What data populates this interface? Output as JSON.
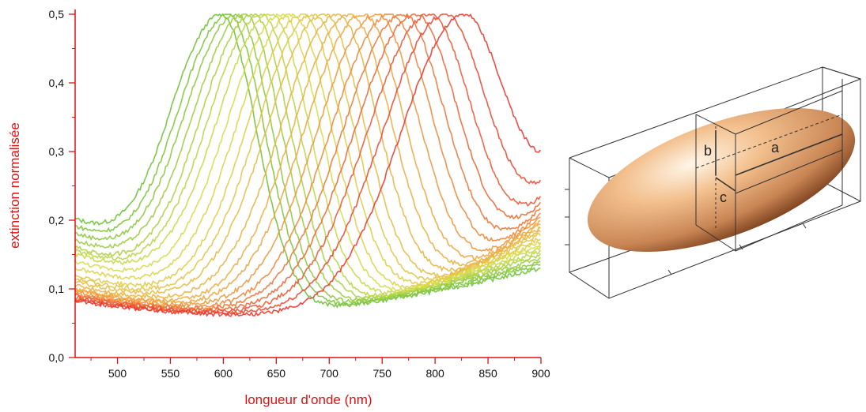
{
  "chart_data": {
    "type": "line",
    "title": "",
    "xlabel": "longueur d'onde (nm)",
    "ylabel": "extinction normalisée",
    "xlim": [
      460,
      900
    ],
    "ylim": [
      0,
      0.5
    ],
    "x_ticks": [
      500,
      550,
      600,
      650,
      700,
      750,
      800,
      850,
      900
    ],
    "y_ticks": [
      0.0,
      0.1,
      0.2,
      0.3,
      0.4,
      0.5
    ],
    "y_tick_labels": [
      "0,0",
      "0,1",
      "0,2",
      "0,3",
      "0,4",
      "0,5"
    ],
    "grid": false,
    "legend": "none",
    "color_gradient": [
      "#6fc23a",
      "#d8dc4a",
      "#f0a640",
      "#ec3a2e"
    ],
    "peak_value": 0.5,
    "series_peaks_nm": [
      598,
      605,
      612,
      620,
      628,
      636,
      645,
      655,
      665,
      675,
      685,
      695,
      708,
      720,
      732,
      745,
      758,
      770,
      782,
      795,
      810,
      828
    ],
    "series_start_values": [
      0.2,
      0.19,
      0.18,
      0.17,
      0.16,
      0.155,
      0.15,
      0.14,
      0.13,
      0.12,
      0.115,
      0.11,
      0.105,
      0.1,
      0.098,
      0.095,
      0.092,
      0.09,
      0.088,
      0.086,
      0.084,
      0.082
    ],
    "series_end_values": [
      0.13,
      0.135,
      0.14,
      0.145,
      0.15,
      0.155,
      0.16,
      0.165,
      0.17,
      0.175,
      0.18,
      0.185,
      0.19,
      0.195,
      0.2,
      0.205,
      0.21,
      0.215,
      0.22,
      0.22,
      0.225,
      0.23
    ]
  },
  "ellipsoid": {
    "labels": {
      "a": "a",
      "b": "b",
      "c": "c"
    },
    "body_colors": [
      "#fff6e8",
      "#f3c08e",
      "#c98554",
      "#7a3f1c"
    ]
  }
}
